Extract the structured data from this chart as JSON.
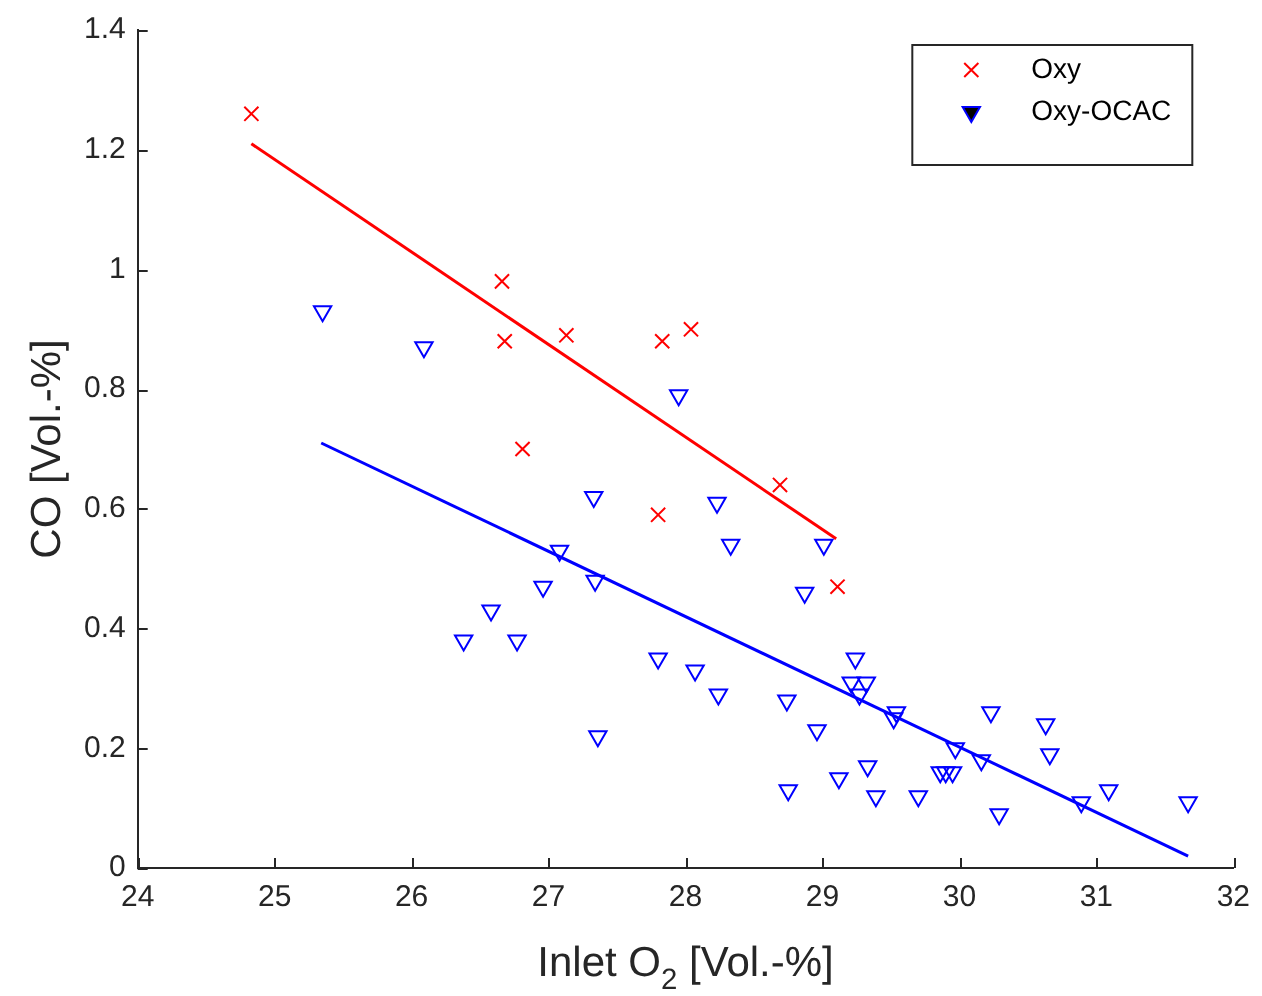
{
  "chart_data": {
    "type": "scatter",
    "xlabel": "Inlet O$_{2}$ [Vol.-%]",
    "ylabel": "CO [Vol.-%]",
    "xlim": [
      24,
      32
    ],
    "xticks": [
      24,
      25,
      26,
      27,
      28,
      29,
      30,
      31,
      32
    ],
    "ylim": [
      0,
      1.4
    ],
    "yticks": [
      0,
      0.2,
      0.4,
      0.6,
      0.8,
      1,
      1.2,
      1.4
    ],
    "legend": "top right",
    "grid": false,
    "series": [
      {
        "name": "Oxy",
        "color": "#ff0000",
        "marker": "cross",
        "x": [
          24.83,
          26.66,
          26.68,
          26.81,
          27.13,
          27.83,
          27.8,
          28.04,
          28.69,
          29.11
        ],
        "values": [
          1.26,
          0.98,
          0.88,
          0.7,
          0.89,
          0.88,
          0.59,
          0.9,
          0.64,
          0.47
        ]
      },
      {
        "name": "Oxy-OCAC",
        "color": "#0000ff",
        "marker": "triangle",
        "x": [
          25.35,
          26.09,
          26.38,
          26.58,
          26.77,
          26.96,
          27.08,
          27.33,
          27.34,
          27.36,
          27.8,
          27.95,
          28.07,
          28.23,
          28.24,
          28.33,
          28.74,
          28.75,
          28.87,
          28.96,
          29.01,
          29.12,
          29.24,
          29.21,
          29.32,
          29.27,
          29.33,
          29.39,
          29.54,
          29.52,
          29.7,
          29.86,
          29.9,
          29.95,
          29.97,
          30.16,
          30.23,
          30.29,
          30.63,
          30.66,
          30.89,
          31.09,
          31.67
        ],
        "values": [
          0.93,
          0.87,
          0.38,
          0.43,
          0.38,
          0.47,
          0.53,
          0.62,
          0.48,
          0.22,
          0.35,
          0.79,
          0.33,
          0.61,
          0.29,
          0.54,
          0.28,
          0.13,
          0.46,
          0.23,
          0.54,
          0.15,
          0.35,
          0.31,
          0.31,
          0.29,
          0.17,
          0.12,
          0.26,
          0.25,
          0.12,
          0.16,
          0.16,
          0.16,
          0.2,
          0.18,
          0.26,
          0.09,
          0.24,
          0.19,
          0.11,
          0.13,
          0.11
        ]
      },
      {
        "type": "line",
        "color": "#ff0000",
        "marker": "none",
        "x": [
          24.83,
          29.1
        ],
        "values": [
          1.21,
          0.55
        ]
      },
      {
        "type": "line",
        "color": "#0000ff",
        "marker": "none",
        "x": [
          25.34,
          31.67
        ],
        "values": [
          0.71,
          0.02
        ]
      }
    ]
  }
}
